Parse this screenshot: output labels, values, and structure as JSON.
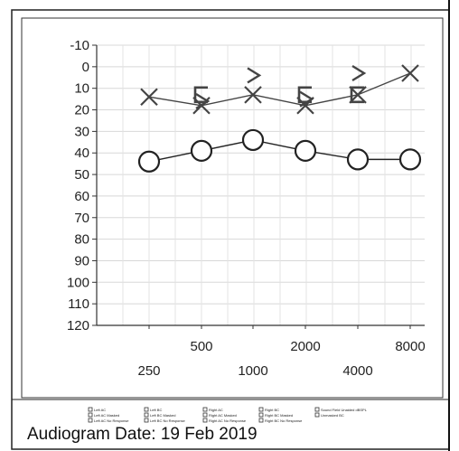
{
  "chart_data": {
    "type": "line",
    "title": "",
    "xlabel": "",
    "ylabel": "",
    "x_tick_labels": [
      "250",
      "500",
      "1000",
      "2000",
      "4000",
      "8000"
    ],
    "y_ticks": [
      "-10",
      "0",
      "10",
      "20",
      "30",
      "40",
      "50",
      "60",
      "70",
      "80",
      "90",
      "100",
      "110",
      "120"
    ],
    "ylim": [
      -10,
      120
    ],
    "y_inverted": true,
    "grid": true,
    "series": [
      {
        "marker": "circle",
        "color": "#222222",
        "x": [
          "250",
          "500",
          "1000",
          "2000",
          "4000",
          "8000"
        ],
        "values": [
          44,
          39,
          34,
          39,
          43,
          43
        ]
      },
      {
        "marker": "x",
        "color": "#444444",
        "x": [
          "250",
          "500",
          "1000",
          "2000",
          "4000",
          "8000"
        ],
        "values": [
          14,
          18,
          13,
          18,
          13,
          3
        ]
      },
      {
        "marker": "square-bracket",
        "color": "#444444",
        "x": [
          "500",
          "2000",
          "4000"
        ],
        "values": [
          13,
          13,
          13
        ]
      },
      {
        "marker": "greater-than",
        "color": "#444444",
        "x": [
          "500",
          "1000",
          "2000",
          "4000"
        ],
        "values": [
          16,
          4,
          15,
          3
        ]
      }
    ]
  },
  "legend": {
    "entries": [
      "Left AC",
      "Left AC Masked",
      "Left AC No Response",
      "Left BC",
      "Left BC Masked",
      "Left BC No Response",
      "Right AC",
      "Right AC Masked",
      "Right AC No Response",
      "Right BC",
      "Right BC Masked",
      "Right BC No Response",
      "Sound Field Unaided dBSPL",
      "Unmasked BC"
    ]
  },
  "caption": "Audiogram Date: 19 Feb 2019"
}
